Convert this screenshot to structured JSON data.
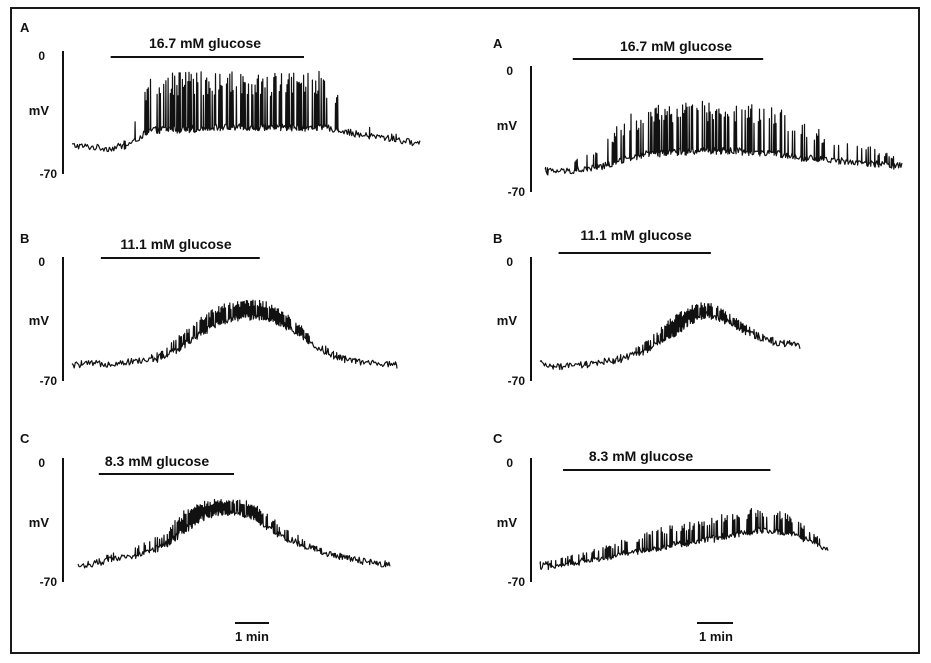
{
  "figure": {
    "scale_bar_label": "1 min"
  },
  "chart_data": [
    {
      "type": "line",
      "panel": "A",
      "condition_label": "16.7 mM glucose",
      "ylabel": "mV",
      "y_ticks": [
        "0",
        "-70"
      ],
      "ylim": [
        -70,
        0
      ],
      "x_units": "min",
      "xlim": [
        0,
        9.2
      ],
      "stimulus_window": [
        1.0,
        6.0
      ],
      "series": [
        {
          "x": [
            0,
            0.5,
            1.0,
            1.5,
            2.0,
            2.5,
            3.0,
            3.5,
            4.0,
            4.5,
            5.0,
            5.5,
            6.0,
            6.5,
            7.0,
            7.5,
            8.0,
            8.5,
            9.0
          ],
          "baseline_mV": [
            -55,
            -56,
            -57,
            -54,
            -46,
            -45,
            -45,
            -44,
            -44,
            -44,
            -44,
            -44,
            -44,
            -44,
            -46,
            -49,
            -50,
            -52,
            -54
          ],
          "spike_peak_mV": [
            -55,
            -55,
            -55,
            -50,
            -11,
            -10,
            -10,
            -10,
            -10,
            -10,
            -10,
            -10,
            -10,
            -10,
            -25,
            -40,
            -45,
            -48,
            -52
          ],
          "spike_density": [
            0.05,
            0.05,
            0.05,
            0.1,
            0.55,
            0.65,
            0.7,
            0.7,
            0.7,
            0.7,
            0.7,
            0.7,
            0.65,
            0.55,
            0.15,
            0.12,
            0.12,
            0.1,
            0.08
          ]
        }
      ]
    },
    {
      "type": "line",
      "panel": "A",
      "condition_label": "16.7 mM glucose",
      "ylabel": "mV",
      "y_ticks": [
        "0",
        "-70"
      ],
      "ylim": [
        -70,
        0
      ],
      "x_units": "min",
      "xlim": [
        0,
        9.2
      ],
      "stimulus_window": [
        0.7,
        5.5
      ],
      "series": [
        {
          "x": [
            0,
            0.5,
            1.0,
            1.5,
            2.0,
            2.5,
            3.0,
            3.5,
            4.0,
            4.5,
            5.0,
            5.5,
            6.0,
            6.5,
            7.0,
            7.5,
            8.0,
            8.5,
            9.0
          ],
          "baseline_mV": [
            -60,
            -60,
            -59,
            -57,
            -53,
            -50,
            -49,
            -48,
            -48,
            -48,
            -48,
            -49,
            -50,
            -52,
            -53,
            -54,
            -55,
            -56,
            -57
          ],
          "spike_peak_mV": [
            -58,
            -55,
            -50,
            -42,
            -28,
            -22,
            -20,
            -18,
            -17,
            -17,
            -18,
            -20,
            -24,
            -30,
            -36,
            -40,
            -44,
            -48,
            -52
          ],
          "spike_density": [
            0.1,
            0.15,
            0.3,
            0.4,
            0.55,
            0.55,
            0.55,
            0.55,
            0.55,
            0.55,
            0.55,
            0.55,
            0.5,
            0.45,
            0.4,
            0.35,
            0.3,
            0.25,
            0.2
          ]
        }
      ]
    },
    {
      "type": "line",
      "panel": "B",
      "condition_label": "11.1 mM glucose",
      "ylabel": "mV",
      "y_ticks": [
        "0",
        "-70"
      ],
      "ylim": [
        -70,
        0
      ],
      "x_units": "min",
      "xlim": [
        0,
        9.2
      ],
      "stimulus_window": [
        0.8,
        5.2
      ],
      "series": [
        {
          "x": [
            0,
            0.5,
            1.0,
            1.5,
            2.0,
            2.5,
            3.0,
            3.5,
            4.0,
            4.5,
            5.0,
            5.5,
            6.0,
            6.5,
            7.0,
            7.5,
            8.0,
            8.5,
            9.0
          ],
          "baseline_mV": [
            -63,
            -62,
            -62,
            -61,
            -60,
            -58,
            -52,
            -44,
            -38,
            -34,
            -33,
            -35,
            -40,
            -48,
            -55,
            -59,
            -61,
            -62,
            -63
          ],
          "spike_peak_mV": [
            -62,
            -62,
            -61,
            -60,
            -58,
            -54,
            -44,
            -34,
            -27,
            -24,
            -23,
            -25,
            -32,
            -42,
            -51,
            -57,
            -60,
            -61,
            -62
          ],
          "spike_density": [
            0.05,
            0.05,
            0.05,
            0.05,
            0.1,
            0.2,
            0.5,
            0.7,
            0.85,
            0.9,
            0.9,
            0.85,
            0.7,
            0.5,
            0.3,
            0.15,
            0.1,
            0.05,
            0.05
          ]
        }
      ]
    },
    {
      "type": "line",
      "panel": "B",
      "condition_label": "11.1 mM glucose",
      "ylabel": "mV",
      "y_ticks": [
        "0",
        "-70"
      ],
      "ylim": [
        -70,
        0
      ],
      "x_units": "min",
      "xlim": [
        0,
        9.2
      ],
      "stimulus_window": [
        0.5,
        4.6
      ],
      "series": [
        {
          "x": [
            0,
            0.5,
            1.0,
            1.5,
            2.0,
            2.5,
            3.0,
            3.5,
            4.0,
            4.5,
            5.0,
            5.5,
            6.0,
            6.5,
            7.0
          ],
          "baseline_mV": [
            -62,
            -64,
            -63,
            -62,
            -60,
            -57,
            -52,
            -45,
            -37,
            -32,
            -36,
            -42,
            -47,
            -50,
            -51
          ],
          "spike_peak_mV": [
            -62,
            -63,
            -62,
            -61,
            -58,
            -53,
            -45,
            -35,
            -27,
            -24,
            -30,
            -38,
            -44,
            -48,
            -50
          ],
          "spike_density": [
            0.05,
            0.05,
            0.05,
            0.1,
            0.15,
            0.25,
            0.45,
            0.7,
            0.9,
            0.9,
            0.7,
            0.5,
            0.35,
            0.25,
            0.2
          ]
        }
      ]
    },
    {
      "type": "line",
      "panel": "C",
      "condition_label": "8.3 mM glucose",
      "ylabel": "mV",
      "y_ticks": [
        "0",
        "-70"
      ],
      "ylim": [
        -70,
        0
      ],
      "x_units": "min",
      "xlim": [
        0,
        9.2
      ],
      "stimulus_window": [
        0.6,
        4.5
      ],
      "series": [
        {
          "x": [
            0,
            0.5,
            1.0,
            1.5,
            2.0,
            2.5,
            3.0,
            3.5,
            4.0,
            4.5,
            5.0,
            5.5,
            6.0,
            6.5,
            7.0,
            7.5,
            8.0,
            8.5,
            9.0
          ],
          "baseline_mV": [
            -63,
            -61,
            -59,
            -57,
            -54,
            -50,
            -42,
            -34,
            -30,
            -30,
            -32,
            -40,
            -46,
            -50,
            -54,
            -57,
            -59,
            -61,
            -62
          ],
          "spike_peak_mV": [
            -61,
            -58,
            -54,
            -52,
            -48,
            -42,
            -30,
            -24,
            -22,
            -22,
            -24,
            -32,
            -40,
            -46,
            -52,
            -55,
            -58,
            -60,
            -61
          ],
          "spike_density": [
            0.1,
            0.15,
            0.2,
            0.2,
            0.25,
            0.35,
            0.7,
            0.9,
            0.95,
            0.95,
            0.9,
            0.6,
            0.35,
            0.25,
            0.2,
            0.15,
            0.1,
            0.1,
            0.1
          ]
        }
      ]
    },
    {
      "type": "line",
      "panel": "C",
      "condition_label": "8.3 mM glucose",
      "ylabel": "mV",
      "y_ticks": [
        "0",
        "-70"
      ],
      "ylim": [
        -70,
        0
      ],
      "x_units": "min",
      "xlim": [
        0,
        9.2
      ],
      "stimulus_window": [
        0.6,
        6.0
      ],
      "series": [
        {
          "x": [
            0,
            0.5,
            1.0,
            1.5,
            2.0,
            2.5,
            3.0,
            3.5,
            4.0,
            4.5,
            5.0,
            5.5,
            6.0,
            6.5,
            7.0,
            7.5
          ],
          "baseline_mV": [
            -63,
            -62,
            -60,
            -58,
            -56,
            -54,
            -52,
            -50,
            -48,
            -46,
            -44,
            -42,
            -41,
            -43,
            -47,
            -54
          ],
          "spike_peak_mV": [
            -60,
            -58,
            -55,
            -52,
            -48,
            -45,
            -40,
            -38,
            -36,
            -33,
            -30,
            -28,
            -28,
            -32,
            -40,
            -50
          ],
          "spike_density": [
            0.2,
            0.25,
            0.3,
            0.3,
            0.35,
            0.35,
            0.4,
            0.4,
            0.45,
            0.45,
            0.5,
            0.5,
            0.5,
            0.45,
            0.35,
            0.25
          ]
        }
      ]
    }
  ]
}
